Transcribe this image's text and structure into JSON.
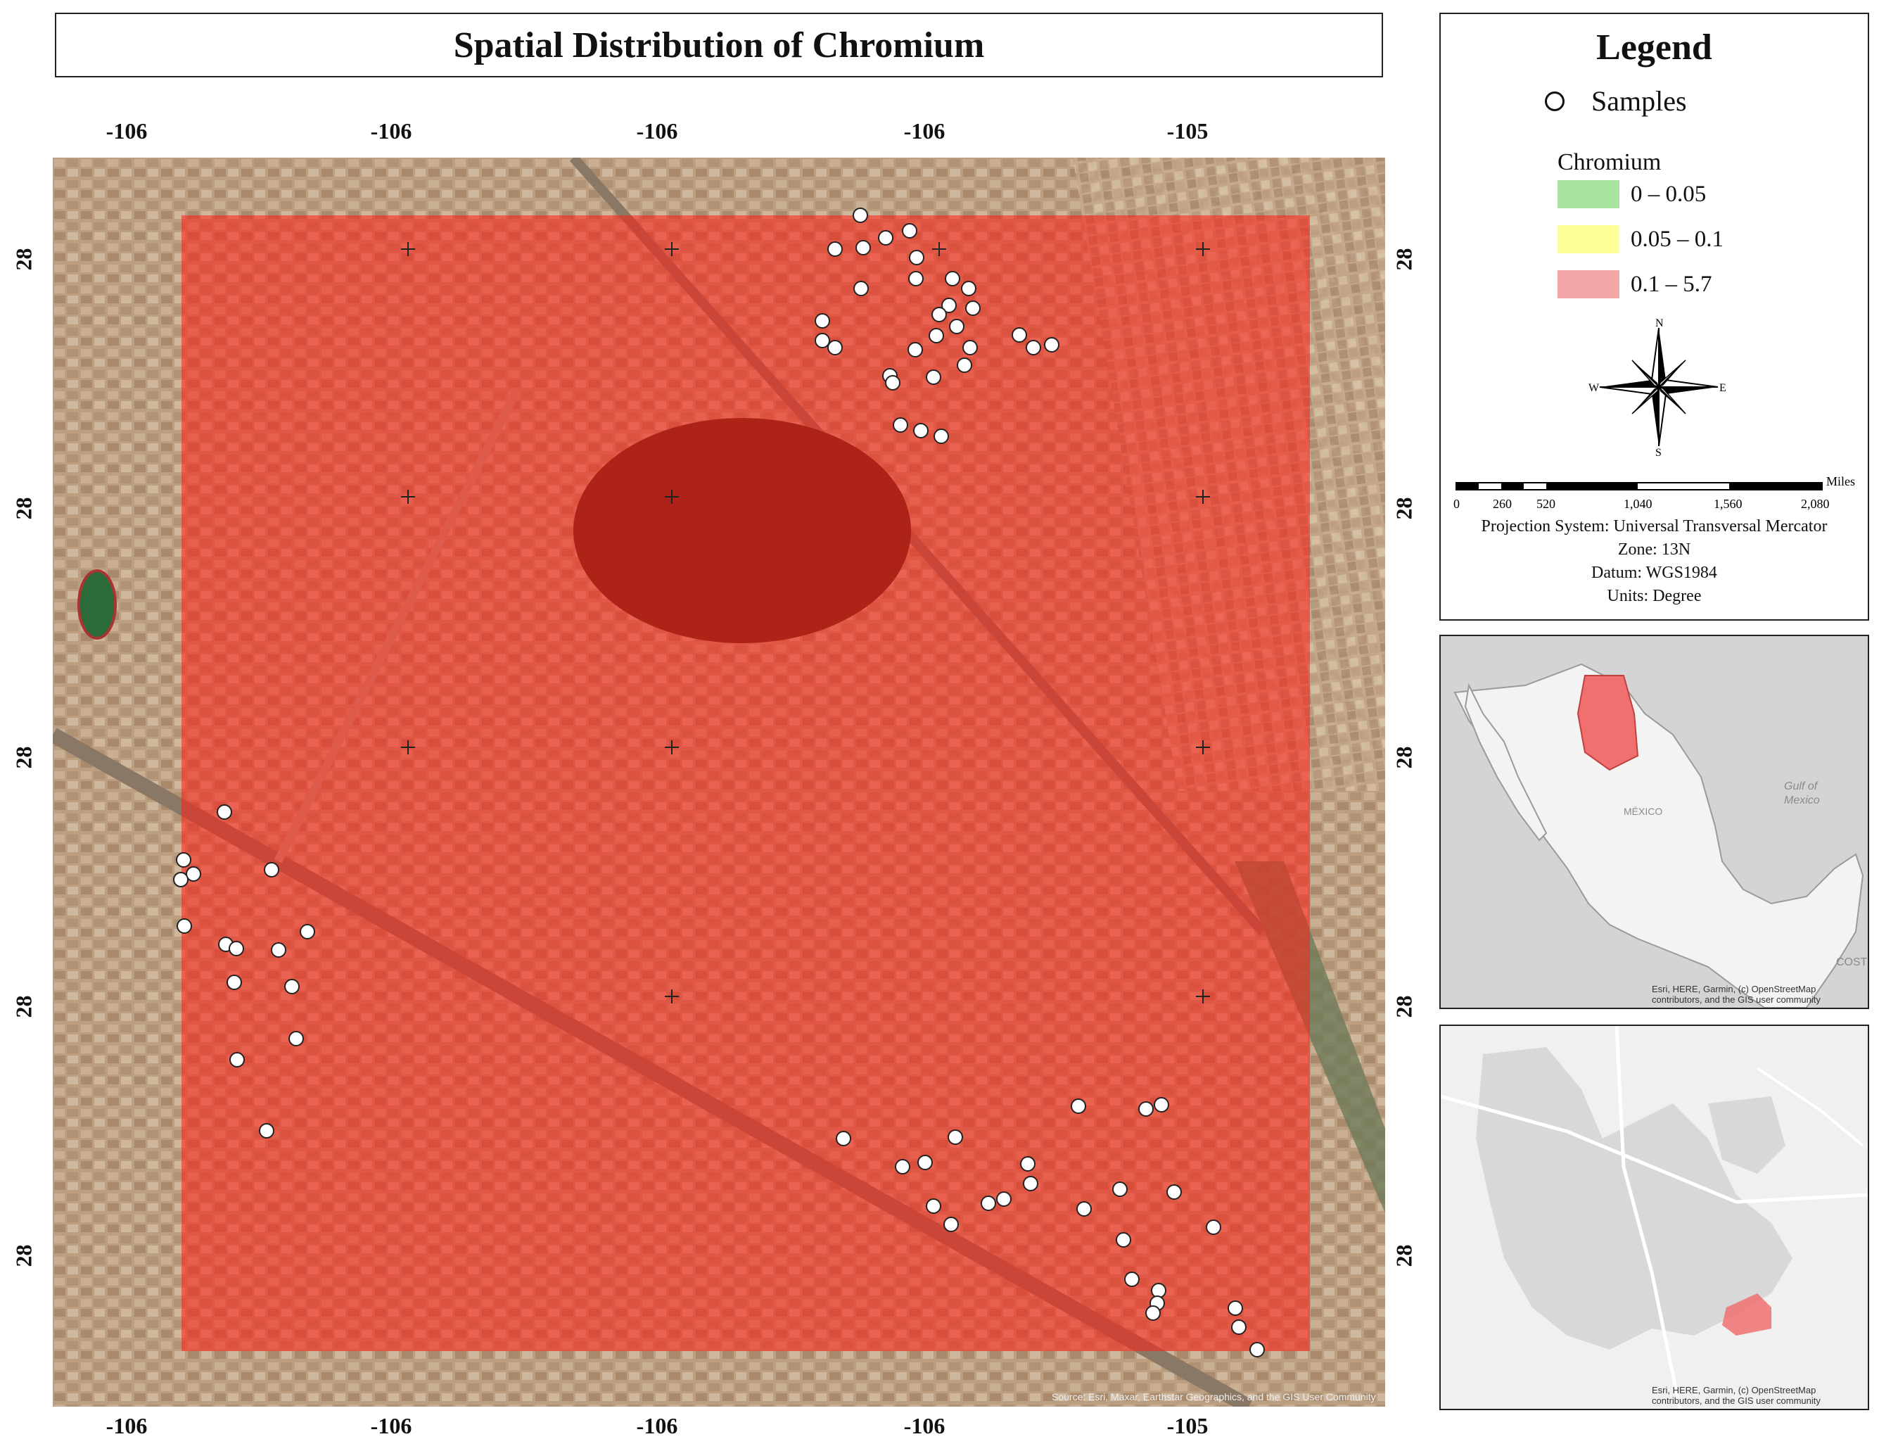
{
  "title": "Spatial Distribution of Chromium",
  "map": {
    "top_ticks": [
      "-106",
      "-106",
      "-106",
      "-106",
      "-105"
    ],
    "bottom_ticks": [
      "-106",
      "-106",
      "-106",
      "-106",
      "-105"
    ],
    "left_ticks": [
      "28",
      "28",
      "28",
      "28",
      "28"
    ],
    "right_ticks": [
      "28",
      "28",
      "28",
      "28",
      "28"
    ],
    "attribution": "Source: Esri, Maxar, Earthstar Geographics, and the GIS User Community",
    "sample_count": 70,
    "overlay_class": "0.1 – 5.7",
    "colors": {
      "overlay": "#ff1e14",
      "sample_fill": "#ffffff",
      "sample_stroke": "#222222"
    }
  },
  "legend": {
    "title": "Legend",
    "samples_label": "Samples",
    "chromium_label": "Chromium",
    "classes": [
      {
        "label": "0 – 0.05",
        "color": "#a8e4a0"
      },
      {
        "label": "0.05 – 0.1",
        "color": "#ffff99"
      },
      {
        "label": "0.1 – 5.7",
        "color": "#f4a6a6"
      }
    ],
    "north_arrow": {
      "n": "N",
      "s": "S",
      "e": "E",
      "w": "W"
    },
    "scale_bar": {
      "unit": "Miles",
      "labels": [
        "0",
        "260",
        "520",
        "1,040",
        "1,560",
        "2,080"
      ]
    },
    "projection": [
      "Projection System: Universal Transversal Mercator",
      "Zone: 13N",
      "Datum: WGS1984",
      "Units: Degree"
    ]
  },
  "inset_mexico": {
    "labels": [
      "Gulf of",
      "Mexico",
      "MÉXICO",
      "COST"
    ],
    "credit": [
      "Esri, HERE, Garmin, (c) OpenStreetMap",
      "contributors, and the GIS user community"
    ],
    "highlight_color": "#f07070"
  },
  "inset_city": {
    "credit": [
      "Esri, HERE, Garmin, (c) OpenStreetMap",
      "contributors, and the GIS user community"
    ],
    "highlight_color": "#f07070"
  }
}
